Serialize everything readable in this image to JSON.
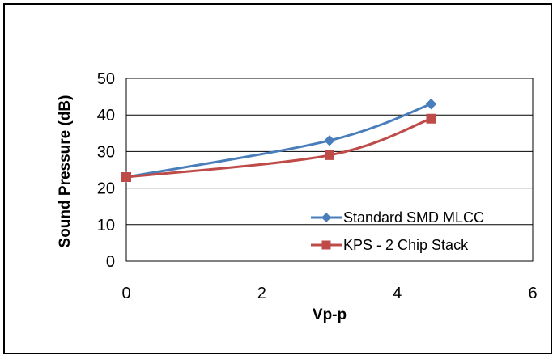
{
  "chart_data": {
    "type": "line",
    "title": "",
    "xlabel": "Vp-p",
    "ylabel": "Sound Pressure (dB)",
    "xlim": [
      0,
      6
    ],
    "ylim": [
      0,
      50
    ],
    "xticks": [
      0,
      2,
      4,
      6
    ],
    "yticks": [
      0,
      10,
      20,
      30,
      40,
      50
    ],
    "grid": "horizontal",
    "legend_position": "bottom-right",
    "smooth": true,
    "series": [
      {
        "name": "Standard SMD MLCC",
        "color": "#4A7EBB",
        "marker": "diamond",
        "x": [
          0,
          3,
          4.5
        ],
        "y": [
          23,
          33,
          43
        ]
      },
      {
        "name": "KPS - 2 Chip Stack",
        "color": "#BE4B48",
        "marker": "square",
        "x": [
          0,
          3,
          4.5
        ],
        "y": [
          23,
          29,
          39
        ]
      }
    ]
  }
}
